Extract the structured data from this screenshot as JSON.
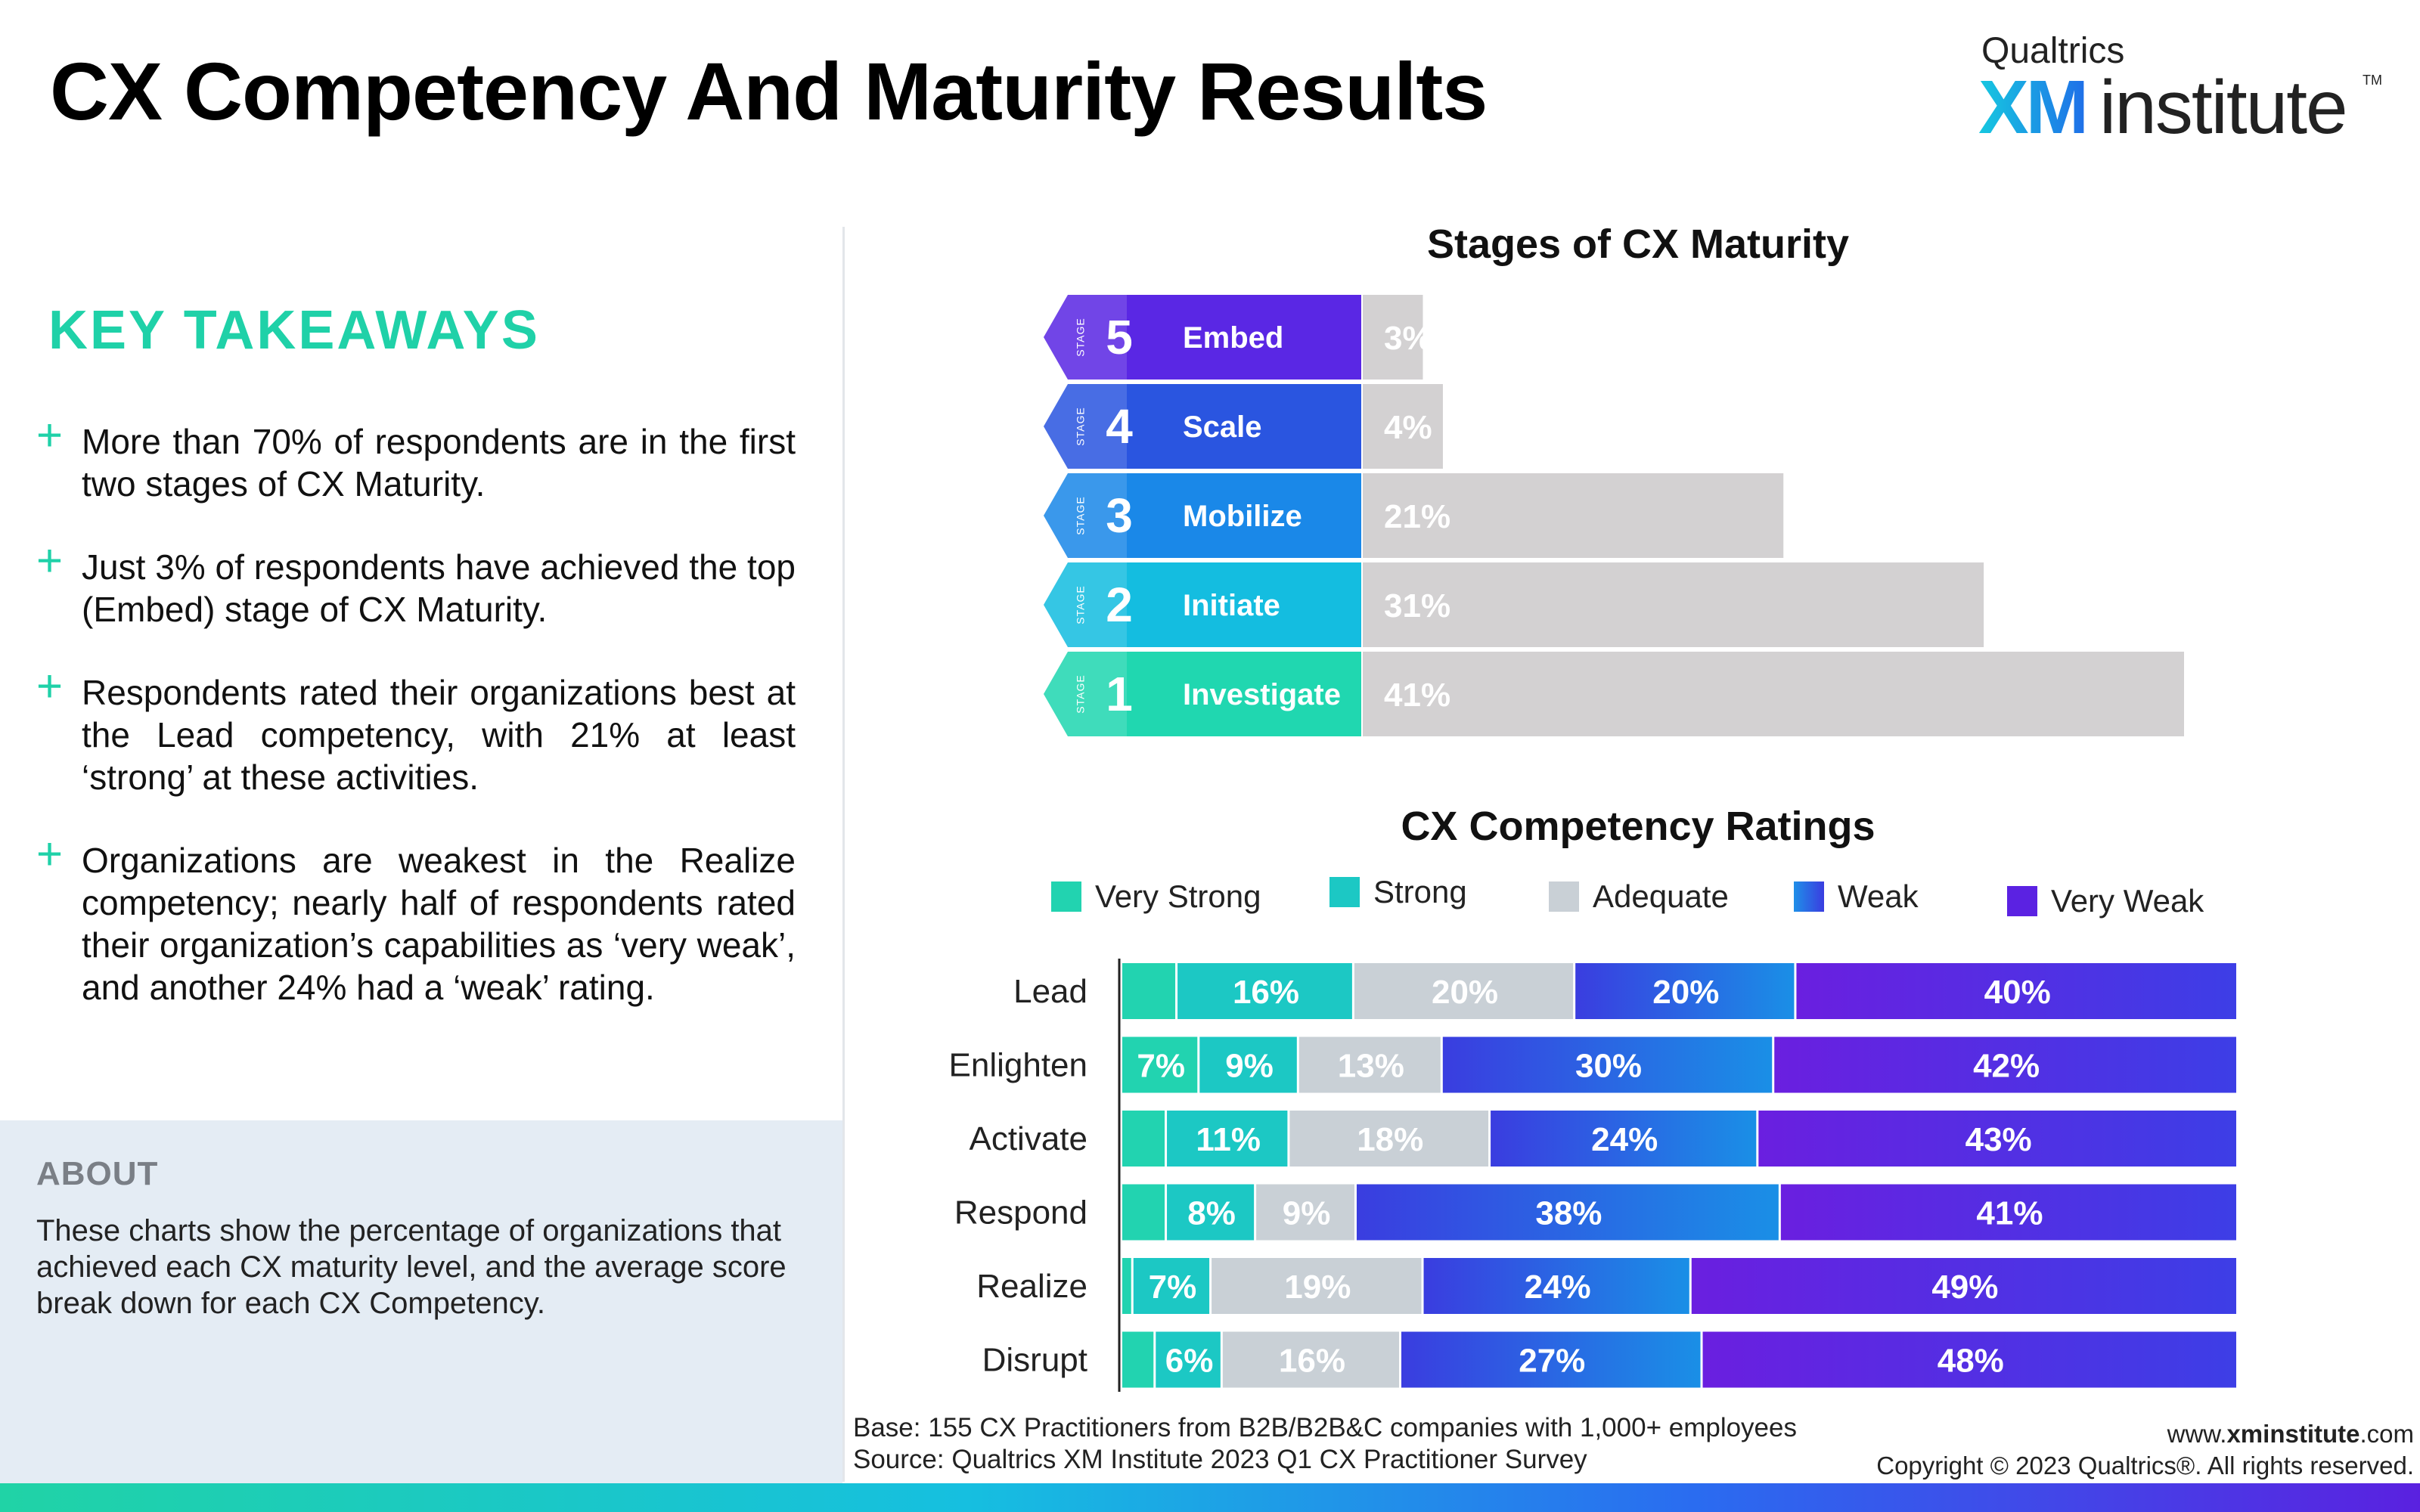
{
  "page": {
    "title": "CX Competency And Maturity Results",
    "logo_brand": "Qualtrics",
    "logo_xm": "XM",
    "logo_institute": "institute",
    "logo_tm": "TM"
  },
  "takeaways": {
    "heading": "KEY TAKEAWAYS",
    "items": [
      "More than 70% of respondents are in the first two stages of CX Maturity.",
      "Just 3% of respondents have achieved the top (Embed) stage of CX Maturity.",
      "Respondents rated their organizations best at the Lead competency, with 21% at least ‘strong’ at these activities.",
      "Organizations are weakest in the Realize competency; nearly half of respondents rated their organization’s capabilities as ‘very weak’, and another 24% had a ‘weak’ rating."
    ]
  },
  "about": {
    "heading": "ABOUT",
    "text": "These charts show the percentage of organizations that achieved each CX maturity level, and the average score break down for each CX Competency."
  },
  "footer": {
    "base": "Base: 155 CX Practitioners from B2B/B2B&C companies with 1,000+ employees",
    "source": "Source: Qualtrics XM Institute 2023 Q1 CX Practitioner Survey",
    "site_prefix": "www.",
    "site_bold": "xminstitute",
    "site_suffix": ".com",
    "copyright": "Copyright © 2023 Qualtrics®. All rights reserved."
  },
  "chart_data": [
    {
      "type": "bar",
      "orientation": "horizontal",
      "title": "Stages of CX Maturity",
      "stage_label": "STAGE",
      "categories": [
        "Embed",
        "Scale",
        "Mobilize",
        "Initiate",
        "Investigate"
      ],
      "stage_numbers": [
        5,
        4,
        3,
        2,
        1
      ],
      "values": [
        3,
        4,
        21,
        31,
        41
      ],
      "value_labels": [
        "3%",
        "4%",
        "21%",
        "31%",
        "41%"
      ],
      "unit": "%",
      "xlim": [
        0,
        41
      ],
      "colors": {
        "bar": "#d3d1d2",
        "stage_fill": [
          "#5a27e4",
          "#2a55e0",
          "#1a88e8",
          "#14bde0",
          "#20d7b0"
        ]
      }
    },
    {
      "type": "bar",
      "orientation": "horizontal",
      "stacked": true,
      "title": "CX Competency Ratings",
      "categories": [
        "Lead",
        "Enlighten",
        "Activate",
        "Respond",
        "Realize",
        "Disrupt"
      ],
      "xlim": [
        0,
        100
      ],
      "series": [
        {
          "name": "Very Strong",
          "color": "#22d3b0",
          "values": [
            5,
            7,
            4,
            4,
            1,
            3
          ],
          "labels": [
            "",
            "7%",
            "",
            "",
            "",
            ""
          ]
        },
        {
          "name": "Strong",
          "color": "#1cc8c4",
          "values": [
            16,
            9,
            11,
            8,
            7,
            6
          ],
          "labels": [
            "16%",
            "9%",
            "11%",
            "8%",
            "7%",
            "6%"
          ]
        },
        {
          "name": "Adequate",
          "color": "#c9d0d6",
          "values": [
            20,
            13,
            18,
            9,
            19,
            16
          ],
          "labels": [
            "20%",
            "13%",
            "18%",
            "9%",
            "19%",
            "16%"
          ]
        },
        {
          "name": "Weak",
          "color": "#2563e6",
          "values": [
            20,
            30,
            24,
            38,
            24,
            27
          ],
          "labels": [
            "20%",
            "30%",
            "24%",
            "38%",
            "24%",
            "27%"
          ]
        },
        {
          "name": "Very Weak",
          "color": "#5b22e2",
          "values": [
            40,
            42,
            43,
            41,
            49,
            48
          ],
          "labels": [
            "40%",
            "42%",
            "43%",
            "41%",
            "49%",
            "48%"
          ]
        }
      ]
    }
  ]
}
